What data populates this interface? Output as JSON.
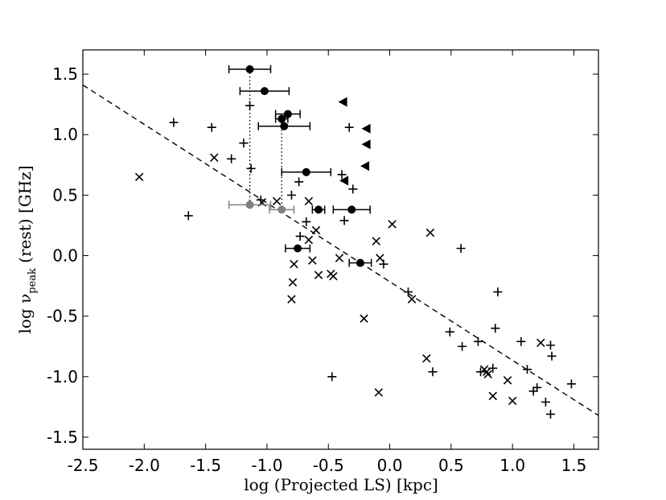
{
  "chart_data": {
    "type": "scatter",
    "title": "",
    "xlabel": "log  (Projected LS) [kpc]",
    "ylabel": {
      "prefix": "log  ν",
      "subscript": "peak",
      "suffix": " (rest) [GHz]"
    },
    "xlim": [
      -2.5,
      1.7
    ],
    "ylim": [
      -1.6,
      1.7
    ],
    "xticks": [
      -2.5,
      -2.0,
      -1.5,
      -1.0,
      -0.5,
      0.0,
      0.5,
      1.0,
      1.5
    ],
    "xtick_labels": [
      "-2.5",
      "-2.0",
      "-1.5",
      "-1.0",
      "-0.5",
      "0.0",
      "0.5",
      "1.0",
      "1.5"
    ],
    "yticks": [
      -1.5,
      -1.0,
      -0.5,
      0.0,
      0.5,
      1.0,
      1.5
    ],
    "ytick_labels": [
      "-1.5",
      "-1.0",
      "-0.5",
      "0.0",
      "0.5",
      "1.0",
      "1.5"
    ],
    "grid": false,
    "fit_line": {
      "style": "dashed",
      "points": [
        [
          -2.5,
          1.41
        ],
        [
          1.7,
          -1.32
        ]
      ]
    },
    "series": [
      {
        "marker": "plus",
        "color": "#000000",
        "points": [
          [
            -1.76,
            1.1
          ],
          [
            -1.45,
            1.06
          ],
          [
            -1.14,
            1.24
          ],
          [
            -1.19,
            0.93
          ],
          [
            -1.29,
            0.8
          ],
          [
            -1.13,
            0.72
          ],
          [
            -1.05,
            0.46
          ],
          [
            -1.64,
            0.33
          ],
          [
            -0.8,
            0.5
          ],
          [
            -0.74,
            0.61
          ],
          [
            -0.73,
            0.16
          ],
          [
            -0.68,
            0.28
          ],
          [
            -0.33,
            1.06
          ],
          [
            -0.39,
            0.67
          ],
          [
            -0.3,
            0.55
          ],
          [
            -0.37,
            0.29
          ],
          [
            -0.05,
            -0.07
          ],
          [
            0.58,
            0.06
          ],
          [
            0.15,
            -0.3
          ],
          [
            0.88,
            -0.3
          ],
          [
            0.49,
            -0.63
          ],
          [
            0.72,
            -0.71
          ],
          [
            0.59,
            -0.75
          ],
          [
            0.35,
            -0.96
          ],
          [
            0.74,
            -0.96
          ],
          [
            0.84,
            -0.93
          ],
          [
            0.86,
            -0.6
          ],
          [
            1.07,
            -0.71
          ],
          [
            1.31,
            -0.74
          ],
          [
            1.32,
            -0.83
          ],
          [
            1.12,
            -0.94
          ],
          [
            1.2,
            -1.09
          ],
          [
            1.17,
            -1.12
          ],
          [
            1.27,
            -1.21
          ],
          [
            1.31,
            -1.31
          ],
          [
            1.48,
            -1.06
          ],
          [
            -0.47,
            -1.0
          ]
        ]
      },
      {
        "marker": "x",
        "color": "#000000",
        "points": [
          [
            -2.04,
            0.65
          ],
          [
            -1.43,
            0.81
          ],
          [
            -1.04,
            0.44
          ],
          [
            -0.92,
            0.45
          ],
          [
            -0.66,
            0.45
          ],
          [
            -0.66,
            0.13
          ],
          [
            -0.6,
            0.21
          ],
          [
            -0.63,
            -0.04
          ],
          [
            -0.78,
            -0.07
          ],
          [
            -0.79,
            -0.22
          ],
          [
            -0.8,
            -0.36
          ],
          [
            -0.58,
            -0.16
          ],
          [
            -0.41,
            -0.02
          ],
          [
            -0.48,
            -0.15
          ],
          [
            -0.46,
            -0.17
          ],
          [
            -0.21,
            -0.52
          ],
          [
            -0.11,
            0.12
          ],
          [
            -0.08,
            -0.02
          ],
          [
            0.02,
            0.26
          ],
          [
            0.18,
            -0.36
          ],
          [
            0.33,
            0.19
          ],
          [
            0.3,
            -0.85
          ],
          [
            -0.09,
            -1.13
          ],
          [
            0.77,
            -0.94
          ],
          [
            0.79,
            -0.96
          ],
          [
            0.8,
            -0.98
          ],
          [
            0.96,
            -1.03
          ],
          [
            0.84,
            -1.16
          ],
          [
            1.0,
            -1.2
          ],
          [
            1.23,
            -0.72
          ]
        ]
      },
      {
        "marker": "filled-circle",
        "color": "#000000",
        "points": [
          [
            -1.14,
            1.54,
            0.17
          ],
          [
            -1.02,
            1.36,
            0.2
          ],
          [
            -0.83,
            1.17,
            0.1
          ],
          [
            -0.88,
            1.13,
            0.05
          ],
          [
            -0.86,
            1.07,
            0.21
          ],
          [
            -0.68,
            0.69,
            0.2
          ],
          [
            -0.58,
            0.38,
            0.05
          ],
          [
            -0.31,
            0.38,
            0.15
          ],
          [
            -0.24,
            -0.06,
            0.09
          ],
          [
            -0.75,
            0.06,
            0.1
          ]
        ]
      },
      {
        "marker": "grey-circle",
        "color": "#808080",
        "points": [
          [
            -1.14,
            0.42,
            0.17
          ],
          [
            -0.88,
            0.38,
            0.1
          ]
        ]
      },
      {
        "marker": "left-triangle",
        "color": "#000000",
        "points": [
          [
            -0.38,
            1.27
          ],
          [
            -0.19,
            1.05
          ],
          [
            -0.19,
            0.92
          ],
          [
            -0.2,
            0.74
          ],
          [
            -0.37,
            0.62
          ]
        ]
      }
    ],
    "dotted_connectors": [
      [
        [
          -1.14,
          1.54
        ],
        [
          -1.14,
          0.42
        ]
      ],
      [
        [
          -0.88,
          1.13
        ],
        [
          -0.88,
          0.38
        ]
      ]
    ]
  }
}
